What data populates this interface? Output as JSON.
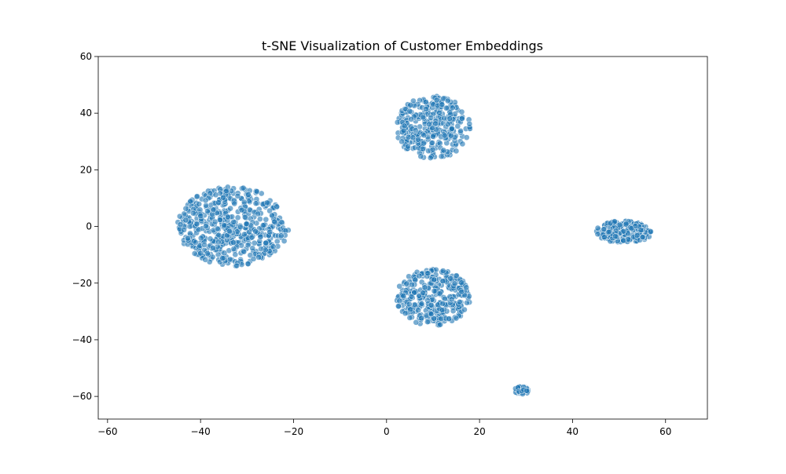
{
  "chart_data": {
    "type": "scatter",
    "title": "t-SNE Visualization of Customer Embeddings",
    "xlabel": "",
    "ylabel": "",
    "xlim": [
      -62,
      69
    ],
    "ylim": [
      -68,
      60
    ],
    "xticks": [
      -60,
      -40,
      -20,
      0,
      20,
      40,
      60
    ],
    "yticks": [
      -60,
      -40,
      -20,
      0,
      20,
      40,
      60
    ],
    "xtick_labels": [
      "−60",
      "−40",
      "−20",
      "0",
      "20",
      "40",
      "60"
    ],
    "ytick_labels": [
      "−60",
      "−40",
      "−20",
      "0",
      "20",
      "40",
      "60"
    ],
    "grid": false,
    "point_color": "#1f77b4",
    "clusters": [
      {
        "center": [
          -33,
          0
        ],
        "spread": [
          12,
          14
        ],
        "count": 520
      },
      {
        "center": [
          10,
          35
        ],
        "spread": [
          8,
          11
        ],
        "count": 300
      },
      {
        "center": [
          10,
          -25
        ],
        "spread": [
          8,
          10
        ],
        "count": 320
      },
      {
        "center": [
          51,
          -2
        ],
        "spread": [
          6,
          4
        ],
        "count": 180
      },
      {
        "center": [
          29,
          -58
        ],
        "spread": [
          1.5,
          1.5
        ],
        "count": 60
      }
    ]
  }
}
